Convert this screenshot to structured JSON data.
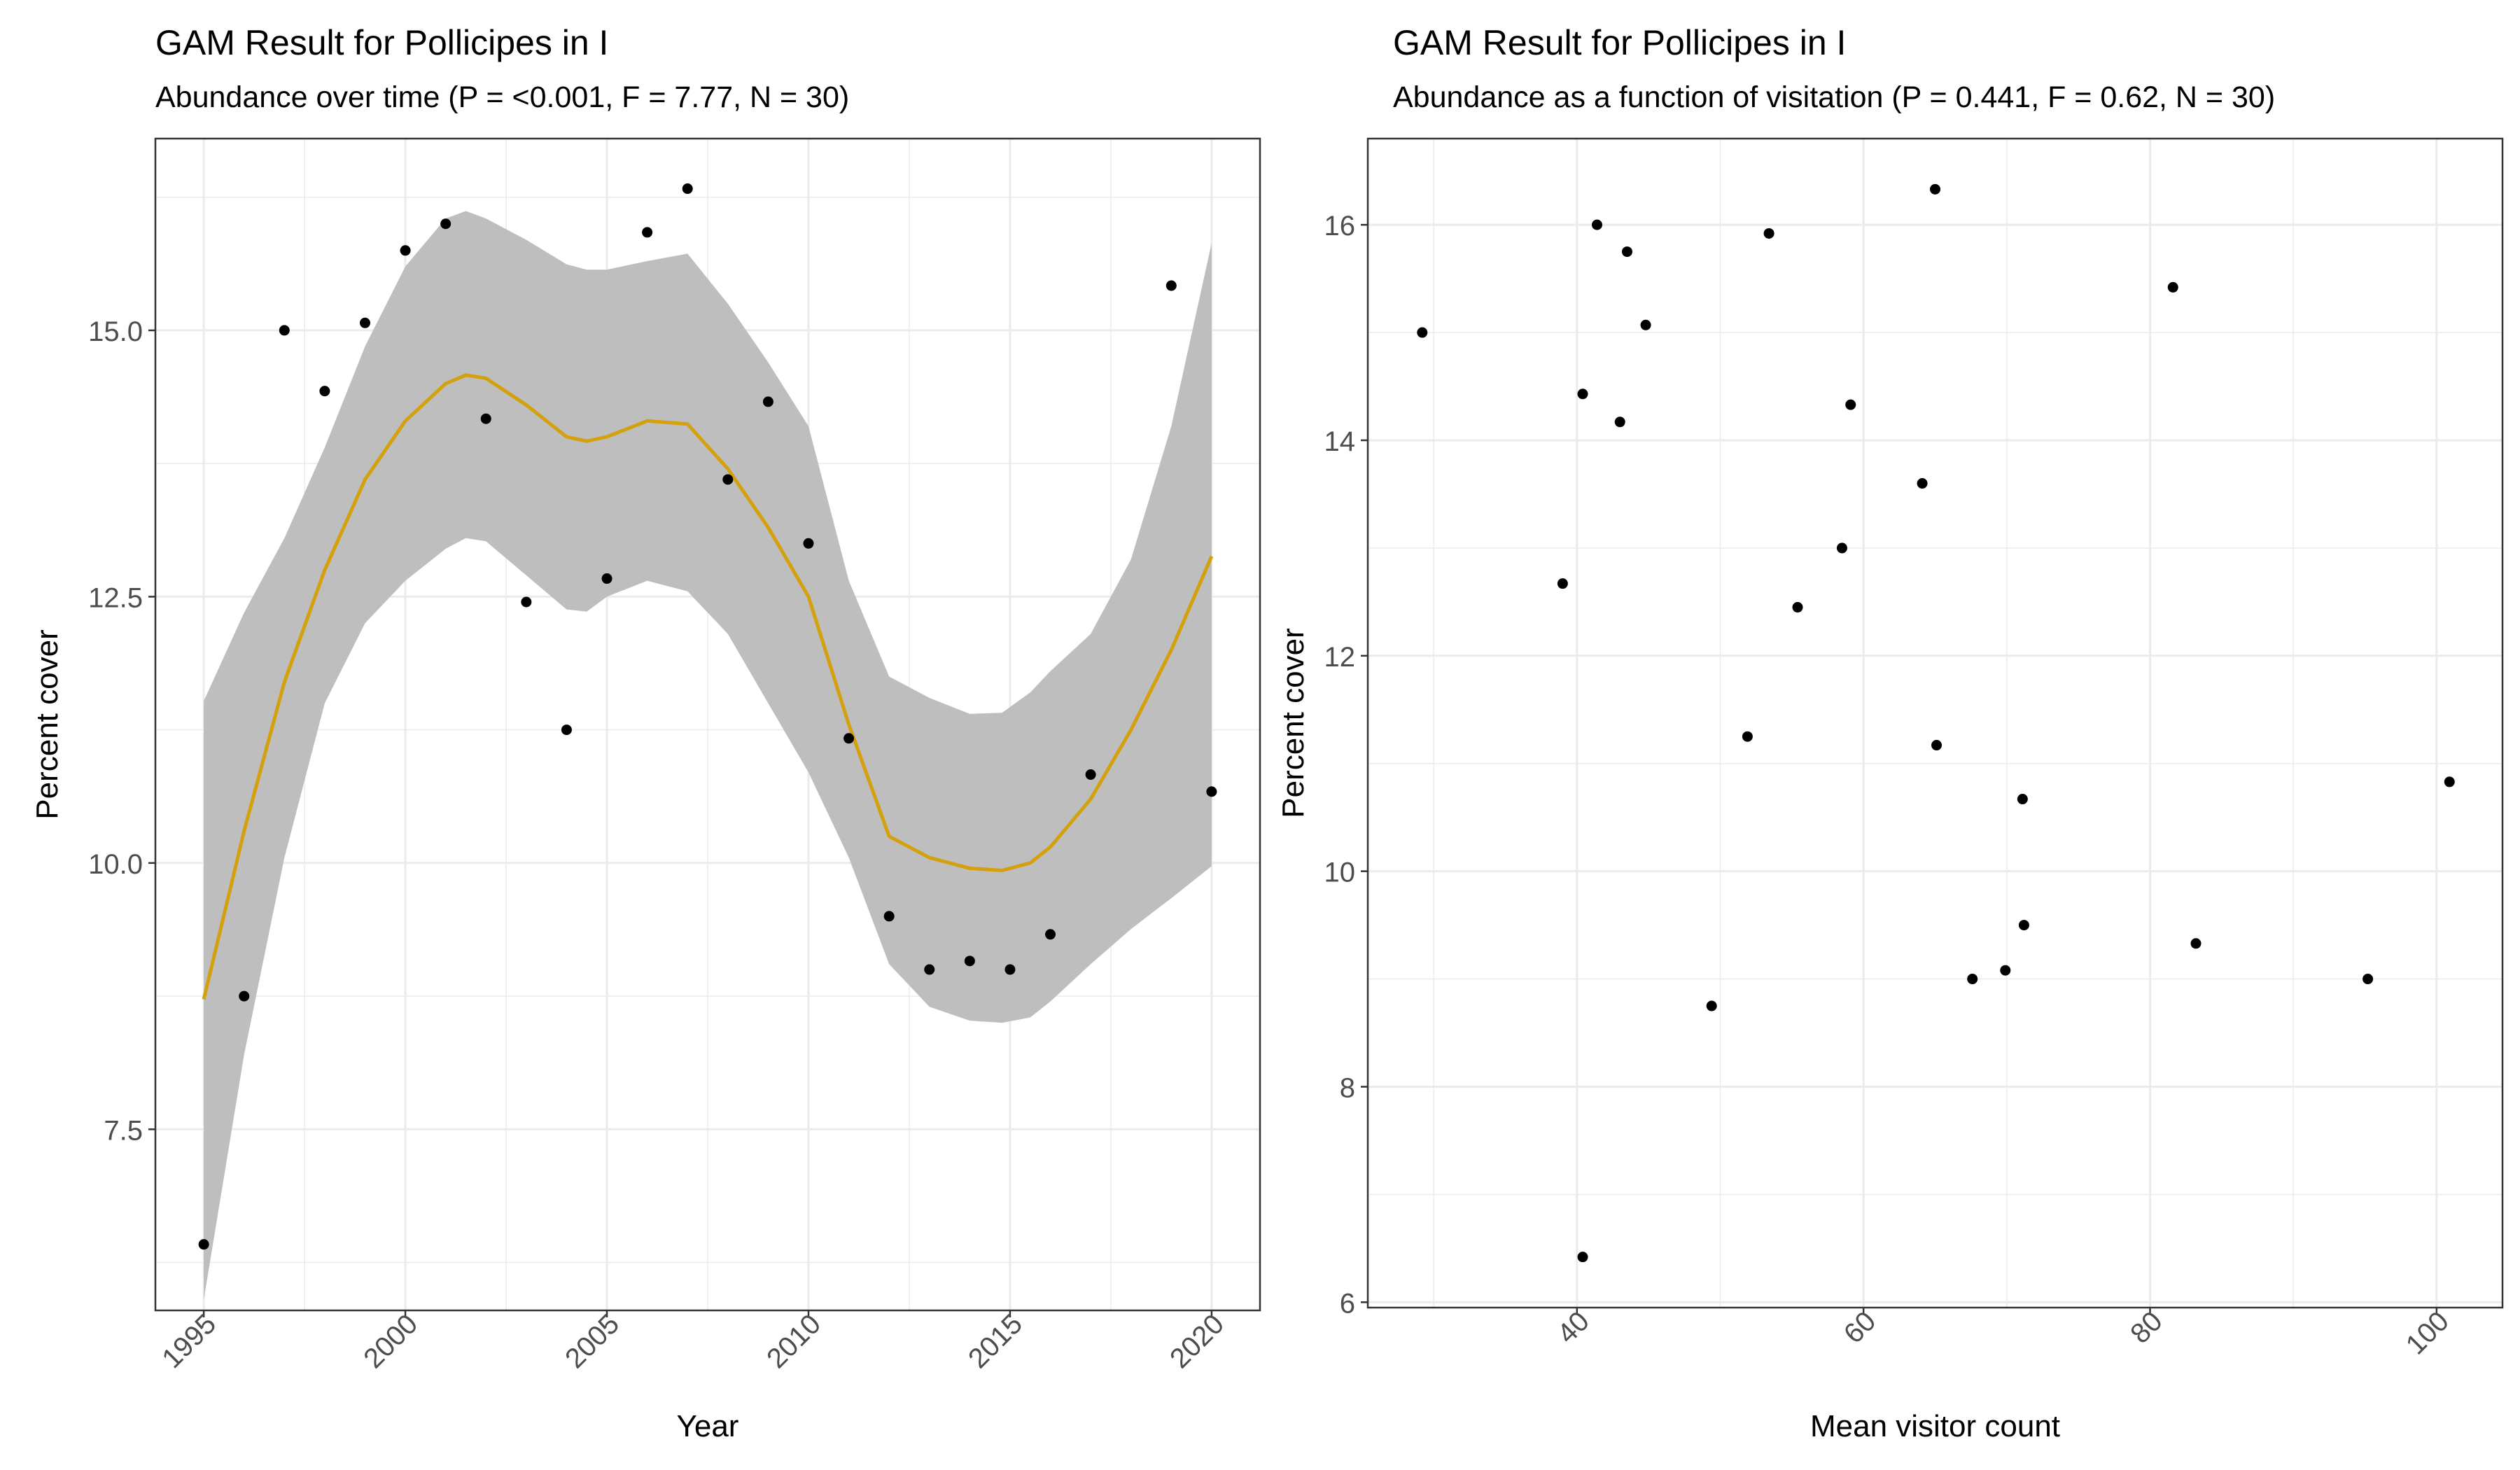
{
  "colors": {
    "smooth_line": "#D4A00C",
    "ribbon": "#BEBEBE",
    "points": "#000000",
    "grid": "#EBEBEB",
    "frame": "#333333",
    "tick_text": "#4D4D4D"
  },
  "chart_data": [
    {
      "type": "scatter",
      "title": "GAM Result for Pollicipes in  I",
      "subtitle": "Abundance over time (P = <0.001, F = 7.77, N = 30)",
      "xlabel": "Year",
      "ylabel": "Percent cover",
      "xlim": [
        1993.8,
        2021.2
      ],
      "ylim": [
        5.8,
        16.8
      ],
      "x_ticks": [
        1995,
        2000,
        2005,
        2010,
        2015,
        2020
      ],
      "x_tick_labels": [
        "1995",
        "2000",
        "2005",
        "2010",
        "2015",
        "2020"
      ],
      "y_ticks": [
        7.5,
        10.0,
        12.5,
        15.0
      ],
      "y_tick_labels": [
        "7.5",
        "10.0",
        "12.5",
        "15.0"
      ],
      "x_tick_rotation": -45,
      "grid": true,
      "points": [
        {
          "x": 1995,
          "y": 6.42
        },
        {
          "x": 1996,
          "y": 8.75
        },
        {
          "x": 1997,
          "y": 15.0
        },
        {
          "x": 1998,
          "y": 14.43
        },
        {
          "x": 1999,
          "y": 15.07
        },
        {
          "x": 2000,
          "y": 15.75
        },
        {
          "x": 2001,
          "y": 16.0
        },
        {
          "x": 2002,
          "y": 14.17
        },
        {
          "x": 2003,
          "y": 12.45
        },
        {
          "x": 2004,
          "y": 11.25
        },
        {
          "x": 2005,
          "y": 12.67
        },
        {
          "x": 2006,
          "y": 15.92
        },
        {
          "x": 2007,
          "y": 16.33
        },
        {
          "x": 2008,
          "y": 13.6
        },
        {
          "x": 2009,
          "y": 14.33
        },
        {
          "x": 2010,
          "y": 13.0
        },
        {
          "x": 2011,
          "y": 11.17
        },
        {
          "x": 2012,
          "y": 9.5
        },
        {
          "x": 2013,
          "y": 9.0
        },
        {
          "x": 2014,
          "y": 9.08
        },
        {
          "x": 2015,
          "y": 9.0
        },
        {
          "x": 2016,
          "y": 9.33
        },
        {
          "x": 2017,
          "y": 10.83
        },
        {
          "x": 2019,
          "y": 15.42
        },
        {
          "x": 2020,
          "y": 10.67
        }
      ],
      "smooth": {
        "x": [
          1995,
          1996,
          1997,
          1998,
          1999,
          2000,
          2001,
          2001.5,
          2002,
          2003,
          2004,
          2004.5,
          2005,
          2006,
          2007,
          2008,
          2009,
          2010,
          2011,
          2012,
          2013,
          2014,
          2014.8,
          2015.5,
          2016,
          2017,
          2018,
          2019,
          2020
        ],
        "y": [
          8.72,
          10.3,
          11.7,
          12.75,
          13.6,
          14.15,
          14.5,
          14.58,
          14.55,
          14.3,
          14.0,
          13.96,
          14.0,
          14.15,
          14.12,
          13.7,
          13.15,
          12.5,
          11.3,
          10.25,
          10.05,
          9.95,
          9.93,
          10.0,
          10.15,
          10.6,
          11.25,
          12.0,
          12.88
        ],
        "lower": [
          5.9,
          8.2,
          10.05,
          11.5,
          12.25,
          12.65,
          12.95,
          13.05,
          13.02,
          12.7,
          12.38,
          12.36,
          12.5,
          12.65,
          12.55,
          12.15,
          11.5,
          10.85,
          10.05,
          9.05,
          8.65,
          8.52,
          8.5,
          8.55,
          8.7,
          9.05,
          9.38,
          9.67,
          9.97
        ],
        "upper": [
          11.52,
          12.35,
          13.05,
          13.9,
          14.85,
          15.6,
          16.05,
          16.12,
          16.05,
          15.85,
          15.62,
          15.57,
          15.57,
          15.65,
          15.72,
          15.25,
          14.7,
          14.1,
          12.65,
          11.75,
          11.55,
          11.4,
          11.41,
          11.6,
          11.8,
          12.15,
          12.85,
          14.1,
          15.82
        ]
      }
    },
    {
      "type": "scatter",
      "title": "GAM Result for Pollicipes in  I",
      "subtitle": "Abundance as a function of visitation (P = 0.441, F = 0.62, N = 30)",
      "xlabel": "Mean visitor count",
      "ylabel": "Percent cover",
      "xlim": [
        25.4,
        104.6
      ],
      "ylim": [
        5.95,
        16.8
      ],
      "x_ticks": [
        40,
        60,
        80,
        100
      ],
      "x_tick_labels": [
        "40",
        "60",
        "80",
        "100"
      ],
      "y_ticks": [
        6,
        8,
        10,
        12,
        14,
        16
      ],
      "y_tick_labels": [
        "6",
        "8",
        "10",
        "12",
        "14",
        "16"
      ],
      "x_tick_rotation": -45,
      "grid": true,
      "points": [
        {
          "x": 29.2,
          "y": 15.0
        },
        {
          "x": 39.0,
          "y": 12.67
        },
        {
          "x": 40.4,
          "y": 14.43
        },
        {
          "x": 40.4,
          "y": 6.42
        },
        {
          "x": 41.4,
          "y": 16.0
        },
        {
          "x": 43.0,
          "y": 14.17
        },
        {
          "x": 43.5,
          "y": 15.75
        },
        {
          "x": 44.8,
          "y": 15.07
        },
        {
          "x": 49.4,
          "y": 8.75
        },
        {
          "x": 51.9,
          "y": 11.25
        },
        {
          "x": 53.4,
          "y": 15.92
        },
        {
          "x": 55.4,
          "y": 12.45
        },
        {
          "x": 58.5,
          "y": 13.0
        },
        {
          "x": 59.1,
          "y": 14.33
        },
        {
          "x": 64.1,
          "y": 13.6
        },
        {
          "x": 65.0,
          "y": 16.33
        },
        {
          "x": 65.1,
          "y": 11.17
        },
        {
          "x": 67.6,
          "y": 9.0
        },
        {
          "x": 69.9,
          "y": 9.08
        },
        {
          "x": 71.1,
          "y": 10.67
        },
        {
          "x": 71.2,
          "y": 9.5
        },
        {
          "x": 81.6,
          "y": 15.42
        },
        {
          "x": 83.2,
          "y": 9.33
        },
        {
          "x": 95.2,
          "y": 9.0
        },
        {
          "x": 100.9,
          "y": 10.83
        }
      ]
    }
  ]
}
